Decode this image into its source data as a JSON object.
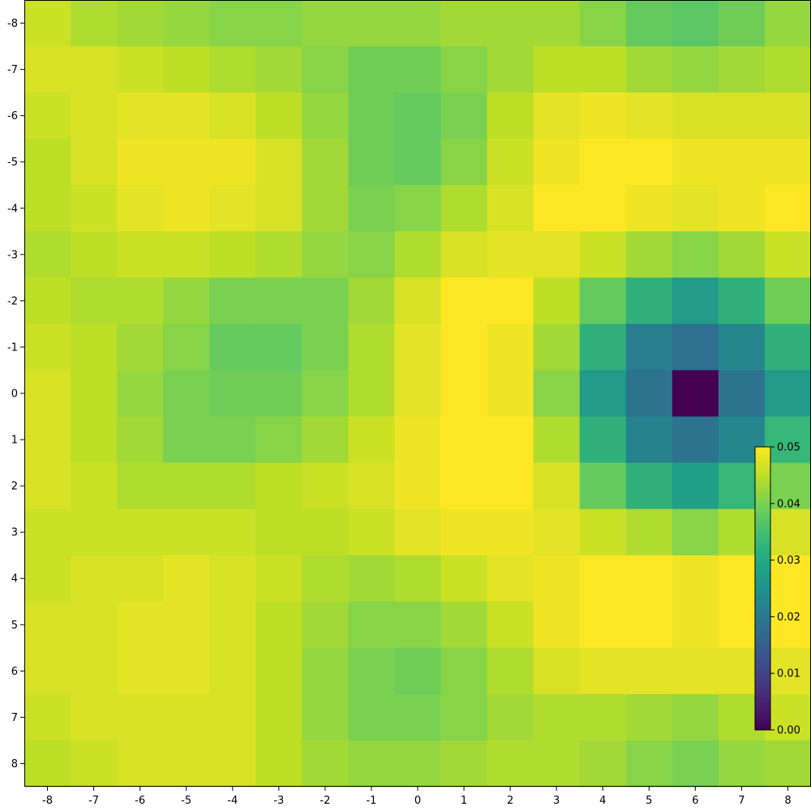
{
  "chart_data": {
    "type": "heatmap",
    "colormap": "viridis",
    "x": [
      -8,
      -7,
      -6,
      -5,
      -4,
      -3,
      -2,
      -1,
      0,
      1,
      2,
      3,
      4,
      5,
      6,
      7,
      8
    ],
    "y": [
      -8,
      -7,
      -6,
      -5,
      -4,
      -3,
      -2,
      -1,
      0,
      1,
      2,
      3,
      4,
      5,
      6,
      7,
      8
    ],
    "x_tick_labels": [
      "-8",
      "-7",
      "-6",
      "-5",
      "-4",
      "-3",
      "-2",
      "-1",
      "0",
      "1",
      "2",
      "3",
      "4",
      "5",
      "6",
      "7",
      "8"
    ],
    "y_tick_labels": [
      "-8",
      "-7",
      "-6",
      "-5",
      "-4",
      "-3",
      "-2",
      "-1",
      "0",
      "1",
      "2",
      "3",
      "4",
      "5",
      "6",
      "7",
      "8"
    ],
    "y_axis_direction": "top-to-bottom",
    "values": [
      [
        0.046,
        0.044,
        0.043,
        0.042,
        0.041,
        0.041,
        0.042,
        0.042,
        0.042,
        0.043,
        0.043,
        0.043,
        0.041,
        0.038,
        0.037,
        0.039,
        0.042
      ],
      [
        0.047,
        0.047,
        0.046,
        0.045,
        0.044,
        0.043,
        0.041,
        0.039,
        0.039,
        0.041,
        0.043,
        0.045,
        0.045,
        0.043,
        0.042,
        0.043,
        0.044
      ],
      [
        0.046,
        0.047,
        0.048,
        0.048,
        0.047,
        0.045,
        0.042,
        0.039,
        0.038,
        0.04,
        0.045,
        0.048,
        0.049,
        0.048,
        0.047,
        0.047,
        0.047
      ],
      [
        0.045,
        0.047,
        0.049,
        0.049,
        0.049,
        0.047,
        0.043,
        0.039,
        0.038,
        0.041,
        0.046,
        0.049,
        0.05,
        0.05,
        0.049,
        0.049,
        0.049
      ],
      [
        0.045,
        0.046,
        0.048,
        0.049,
        0.048,
        0.047,
        0.043,
        0.04,
        0.041,
        0.044,
        0.047,
        0.05,
        0.05,
        0.049,
        0.048,
        0.049,
        0.05
      ],
      [
        0.044,
        0.045,
        0.046,
        0.046,
        0.045,
        0.044,
        0.042,
        0.041,
        0.044,
        0.047,
        0.048,
        0.048,
        0.046,
        0.043,
        0.041,
        0.043,
        0.046
      ],
      [
        0.045,
        0.044,
        0.044,
        0.042,
        0.04,
        0.04,
        0.04,
        0.043,
        0.047,
        0.05,
        0.05,
        0.045,
        0.038,
        0.032,
        0.027,
        0.032,
        0.039
      ],
      [
        0.046,
        0.045,
        0.043,
        0.041,
        0.038,
        0.038,
        0.04,
        0.044,
        0.048,
        0.05,
        0.049,
        0.043,
        0.032,
        0.021,
        0.018,
        0.023,
        0.032
      ],
      [
        0.047,
        0.045,
        0.042,
        0.04,
        0.039,
        0.039,
        0.041,
        0.044,
        0.048,
        0.05,
        0.049,
        0.041,
        0.027,
        0.019,
        0.0,
        0.019,
        0.027
      ],
      [
        0.047,
        0.045,
        0.043,
        0.04,
        0.04,
        0.041,
        0.043,
        0.046,
        0.049,
        0.05,
        0.05,
        0.044,
        0.032,
        0.022,
        0.019,
        0.023,
        0.033
      ],
      [
        0.047,
        0.046,
        0.044,
        0.044,
        0.044,
        0.045,
        0.046,
        0.047,
        0.049,
        0.05,
        0.05,
        0.047,
        0.038,
        0.032,
        0.028,
        0.033,
        0.04
      ],
      [
        0.046,
        0.046,
        0.046,
        0.046,
        0.046,
        0.045,
        0.045,
        0.046,
        0.048,
        0.049,
        0.049,
        0.048,
        0.046,
        0.044,
        0.041,
        0.044,
        0.047
      ],
      [
        0.046,
        0.047,
        0.047,
        0.048,
        0.047,
        0.046,
        0.044,
        0.043,
        0.044,
        0.046,
        0.048,
        0.049,
        0.05,
        0.05,
        0.049,
        0.05,
        0.051
      ],
      [
        0.047,
        0.047,
        0.048,
        0.048,
        0.047,
        0.045,
        0.043,
        0.041,
        0.041,
        0.043,
        0.046,
        0.049,
        0.05,
        0.05,
        0.049,
        0.05,
        0.051
      ],
      [
        0.047,
        0.047,
        0.048,
        0.048,
        0.047,
        0.045,
        0.042,
        0.04,
        0.039,
        0.041,
        0.044,
        0.047,
        0.048,
        0.048,
        0.048,
        0.048,
        0.048
      ],
      [
        0.046,
        0.047,
        0.047,
        0.047,
        0.047,
        0.045,
        0.042,
        0.04,
        0.04,
        0.041,
        0.043,
        0.044,
        0.044,
        0.043,
        0.042,
        0.044,
        0.046
      ],
      [
        0.045,
        0.046,
        0.047,
        0.047,
        0.047,
        0.045,
        0.043,
        0.042,
        0.042,
        0.043,
        0.044,
        0.044,
        0.043,
        0.041,
        0.04,
        0.042,
        0.043
      ]
    ],
    "colorbar": {
      "vmin": 0.0,
      "vmax": 0.05,
      "ticks": [
        0.0,
        0.01,
        0.02,
        0.03,
        0.04,
        0.05
      ],
      "tick_labels": [
        "0.00",
        "0.01",
        "0.02",
        "0.03",
        "0.04",
        "0.05"
      ],
      "placement": "inside-right"
    },
    "title": "",
    "xlabel": "",
    "ylabel": "",
    "grid": false
  }
}
